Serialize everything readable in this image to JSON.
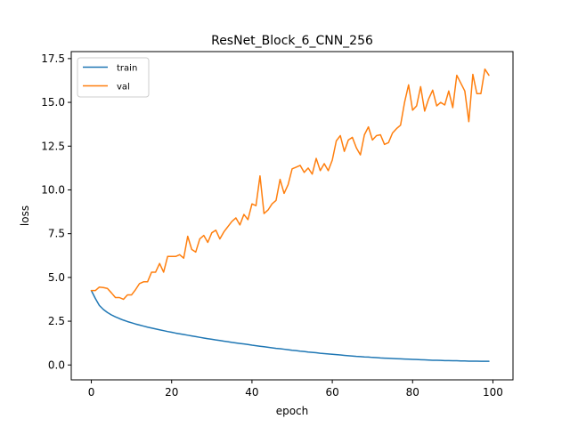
{
  "chart_data": {
    "type": "line",
    "title": "ResNet_Block_6_CNN_256",
    "xlabel": "epoch",
    "ylabel": "loss",
    "xlim": [
      -5,
      105
    ],
    "ylim": [
      -0.85,
      17.9
    ],
    "xticks": [
      0,
      20,
      40,
      60,
      80,
      100
    ],
    "yticks": [
      0.0,
      2.5,
      5.0,
      7.5,
      10.0,
      12.5,
      15.0,
      17.5
    ],
    "xtick_labels": [
      "0",
      "20",
      "40",
      "60",
      "80",
      "100"
    ],
    "ytick_labels": [
      "0.0",
      "2.5",
      "5.0",
      "7.5",
      "10.0",
      "12.5",
      "15.0",
      "17.5"
    ],
    "grid": false,
    "legend_position": "top-left",
    "series": [
      {
        "name": "train",
        "color": "#1f77b4",
        "x": [
          0,
          1,
          2,
          3,
          4,
          5,
          6,
          7,
          8,
          9,
          10,
          11,
          12,
          13,
          14,
          15,
          16,
          17,
          18,
          19,
          20,
          21,
          22,
          23,
          24,
          25,
          26,
          27,
          28,
          29,
          30,
          31,
          32,
          33,
          34,
          35,
          36,
          37,
          38,
          39,
          40,
          41,
          42,
          43,
          44,
          45,
          46,
          47,
          48,
          49,
          50,
          51,
          52,
          53,
          54,
          55,
          56,
          57,
          58,
          59,
          60,
          61,
          62,
          63,
          64,
          65,
          66,
          67,
          68,
          69,
          70,
          71,
          72,
          73,
          74,
          75,
          76,
          77,
          78,
          79,
          80,
          81,
          82,
          83,
          84,
          85,
          86,
          87,
          88,
          89,
          90,
          91,
          92,
          93,
          94,
          95,
          96,
          97,
          98,
          99
        ],
        "values": [
          4.25,
          3.8,
          3.4,
          3.17,
          3.0,
          2.86,
          2.75,
          2.65,
          2.56,
          2.48,
          2.41,
          2.34,
          2.28,
          2.22,
          2.16,
          2.11,
          2.06,
          2.01,
          1.96,
          1.91,
          1.87,
          1.82,
          1.78,
          1.74,
          1.7,
          1.66,
          1.62,
          1.58,
          1.54,
          1.5,
          1.47,
          1.43,
          1.4,
          1.36,
          1.33,
          1.29,
          1.26,
          1.23,
          1.2,
          1.17,
          1.13,
          1.1,
          1.07,
          1.04,
          1.01,
          0.98,
          0.95,
          0.93,
          0.9,
          0.87,
          0.84,
          0.82,
          0.79,
          0.77,
          0.74,
          0.72,
          0.7,
          0.67,
          0.65,
          0.63,
          0.61,
          0.59,
          0.57,
          0.55,
          0.53,
          0.51,
          0.49,
          0.48,
          0.46,
          0.45,
          0.43,
          0.42,
          0.4,
          0.39,
          0.38,
          0.37,
          0.36,
          0.35,
          0.34,
          0.33,
          0.32,
          0.31,
          0.3,
          0.29,
          0.28,
          0.27,
          0.27,
          0.26,
          0.25,
          0.25,
          0.24,
          0.24,
          0.23,
          0.23,
          0.22,
          0.22,
          0.22,
          0.21,
          0.21,
          0.21
        ]
      },
      {
        "name": "val",
        "color": "#ff7f0e",
        "x": [
          0,
          1,
          2,
          3,
          4,
          5,
          6,
          7,
          8,
          9,
          10,
          11,
          12,
          13,
          14,
          15,
          16,
          17,
          18,
          19,
          20,
          21,
          22,
          23,
          24,
          25,
          26,
          27,
          28,
          29,
          30,
          31,
          32,
          33,
          34,
          35,
          36,
          37,
          38,
          39,
          40,
          41,
          42,
          43,
          44,
          45,
          46,
          47,
          48,
          49,
          50,
          51,
          52,
          53,
          54,
          55,
          56,
          57,
          58,
          59,
          60,
          61,
          62,
          63,
          64,
          65,
          66,
          67,
          68,
          69,
          70,
          71,
          72,
          73,
          74,
          75,
          76,
          77,
          78,
          79,
          80,
          81,
          82,
          83,
          84,
          85,
          86,
          87,
          88,
          89,
          90,
          91,
          92,
          93,
          94,
          95,
          96,
          97,
          98,
          99
        ],
        "values": [
          4.25,
          4.25,
          4.45,
          4.42,
          4.37,
          4.12,
          3.85,
          3.85,
          3.75,
          4.0,
          4.0,
          4.3,
          4.65,
          4.75,
          4.75,
          5.3,
          5.3,
          5.8,
          5.3,
          6.2,
          6.2,
          6.2,
          6.3,
          6.1,
          7.35,
          6.6,
          6.45,
          7.2,
          7.4,
          7.0,
          7.55,
          7.7,
          7.2,
          7.6,
          7.9,
          8.2,
          8.4,
          8.0,
          8.6,
          8.3,
          9.2,
          9.1,
          10.8,
          8.65,
          8.85,
          9.2,
          9.4,
          10.6,
          9.8,
          10.3,
          11.2,
          11.3,
          11.4,
          11.0,
          11.25,
          10.9,
          11.8,
          11.1,
          11.5,
          11.1,
          11.7,
          12.8,
          13.1,
          12.2,
          12.85,
          13.0,
          12.4,
          12.0,
          13.15,
          13.6,
          12.85,
          13.1,
          13.15,
          12.6,
          12.7,
          13.25,
          13.5,
          13.7,
          15.0,
          16.0,
          14.55,
          14.8,
          15.9,
          14.5,
          15.2,
          15.7,
          14.8,
          15.0,
          14.85,
          15.65,
          14.7,
          16.55,
          16.1,
          15.65,
          13.9,
          16.6,
          15.5,
          15.5,
          16.9,
          16.55
        ]
      }
    ]
  }
}
